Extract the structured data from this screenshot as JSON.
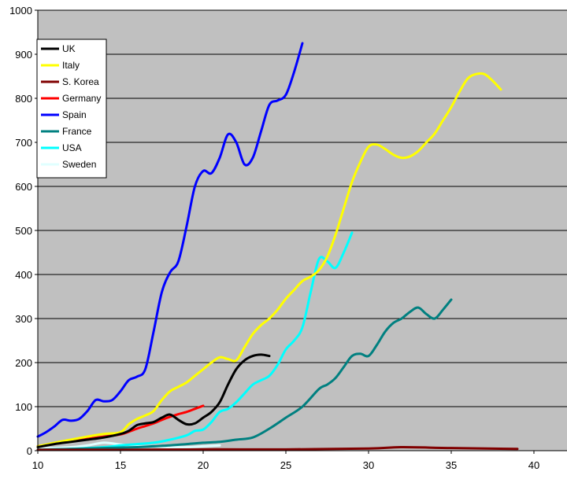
{
  "chart_data": {
    "type": "line",
    "title": "",
    "xlabel": "",
    "ylabel": "",
    "xlim": [
      10,
      42
    ],
    "ylim": [
      0,
      1000
    ],
    "x_ticks": [
      "10",
      "15",
      "20",
      "25",
      "30",
      "35",
      "40"
    ],
    "y_ticks": [
      "0",
      "100",
      "200",
      "300",
      "400",
      "500",
      "600",
      "700",
      "800",
      "900",
      "1000"
    ],
    "grid": "horizontal",
    "plot_background": "#c0c0c0",
    "legend_position": "top-left",
    "series": [
      {
        "name": "UK",
        "color": "#000000",
        "x": [
          10,
          11,
          12,
          13,
          14,
          15,
          15.5,
          16,
          16.5,
          17,
          17.5,
          18,
          18.5,
          19,
          19.5,
          20,
          20.5,
          21,
          21.5,
          22,
          22.5,
          23,
          23.5,
          24
        ],
        "y": [
          8,
          15,
          20,
          25,
          30,
          38,
          45,
          58,
          62,
          65,
          75,
          82,
          70,
          60,
          62,
          75,
          88,
          110,
          150,
          185,
          205,
          215,
          218,
          215
        ]
      },
      {
        "name": "Italy",
        "color": "#ffff00",
        "x": [
          10,
          11,
          12,
          13,
          14,
          15,
          15.5,
          16,
          16.5,
          17,
          17.5,
          18,
          18.5,
          19,
          19.5,
          20,
          20.5,
          21,
          21.5,
          22,
          22.5,
          23,
          23.5,
          24,
          24.5,
          25,
          25.5,
          26,
          26.5,
          27,
          27.5,
          28,
          28.5,
          29,
          29.5,
          30,
          30.5,
          31,
          31.5,
          32,
          32.5,
          33,
          33.5,
          34,
          34.5,
          35,
          35.5,
          36,
          36.5,
          37,
          37.5,
          38
        ],
        "y": [
          10,
          18,
          25,
          32,
          38,
          42,
          60,
          72,
          80,
          90,
          115,
          135,
          145,
          155,
          170,
          185,
          200,
          212,
          208,
          205,
          235,
          265,
          285,
          300,
          320,
          345,
          365,
          385,
          395,
          410,
          440,
          490,
          550,
          610,
          655,
          690,
          695,
          685,
          672,
          665,
          668,
          680,
          700,
          720,
          750,
          780,
          815,
          845,
          855,
          855,
          840,
          820
        ]
      },
      {
        "name": "S. Korea",
        "color": "#800000",
        "x": [
          10,
          15,
          20,
          25,
          30,
          32,
          35,
          39
        ],
        "y": [
          2,
          2,
          3,
          3,
          5,
          8,
          6,
          4
        ]
      },
      {
        "name": "Germany",
        "color": "#ff0000",
        "x": [
          10,
          11,
          12,
          13,
          14,
          15,
          15.5,
          16,
          16.5,
          17,
          17.5,
          18,
          18.5,
          19,
          19.5,
          20
        ],
        "y": [
          10,
          16,
          22,
          27,
          32,
          37,
          43,
          50,
          56,
          62,
          70,
          77,
          83,
          88,
          95,
          102
        ]
      },
      {
        "name": "Spain",
        "color": "#0000ff",
        "x": [
          10,
          10.5,
          11,
          11.5,
          12,
          12.5,
          13,
          13.5,
          14,
          14.5,
          15,
          15.5,
          16,
          16.5,
          17,
          17.5,
          18,
          18.5,
          19,
          19.5,
          20,
          20.5,
          21,
          21.5,
          22,
          22.5,
          23,
          23.5,
          24,
          24.5,
          25,
          25.5,
          26
        ],
        "y": [
          32,
          42,
          55,
          70,
          68,
          72,
          90,
          115,
          112,
          115,
          135,
          160,
          168,
          185,
          270,
          360,
          405,
          430,
          510,
          600,
          635,
          630,
          665,
          718,
          700,
          650,
          665,
          725,
          785,
          795,
          808,
          860,
          925
        ]
      },
      {
        "name": "France",
        "color": "#008080",
        "x": [
          10,
          12,
          14,
          16,
          17,
          18,
          19,
          20,
          21,
          22,
          23,
          24,
          25,
          26,
          27,
          27.5,
          28,
          28.5,
          29,
          29.5,
          30,
          30.5,
          31,
          31.5,
          32,
          32.5,
          33,
          33.5,
          34,
          34.5,
          35
        ],
        "y": [
          2,
          4,
          6,
          8,
          10,
          12,
          15,
          18,
          20,
          25,
          30,
          50,
          75,
          100,
          140,
          150,
          165,
          190,
          215,
          220,
          215,
          240,
          270,
          290,
          300,
          315,
          325,
          310,
          300,
          320,
          343
        ]
      },
      {
        "name": "USA",
        "color": "#00ffff",
        "x": [
          10,
          12,
          14,
          15,
          16,
          17,
          18,
          19,
          19.5,
          20,
          20.5,
          21,
          21.5,
          22,
          22.5,
          23,
          23.5,
          24,
          24.5,
          25,
          25.5,
          26,
          26.5,
          27,
          27.5,
          28,
          28.5,
          29
        ],
        "y": [
          2,
          4,
          8,
          12,
          15,
          18,
          25,
          35,
          45,
          48,
          65,
          88,
          95,
          110,
          130,
          150,
          160,
          170,
          195,
          230,
          250,
          280,
          360,
          435,
          430,
          415,
          450,
          495
        ]
      },
      {
        "name": "Sweden",
        "color": "#e0ffff",
        "x": [
          10,
          12,
          13,
          14,
          15,
          16,
          17,
          18,
          19,
          20,
          21
        ],
        "y": [
          5,
          8,
          12,
          18,
          14,
          10,
          10,
          8,
          8,
          10,
          12
        ]
      }
    ]
  }
}
